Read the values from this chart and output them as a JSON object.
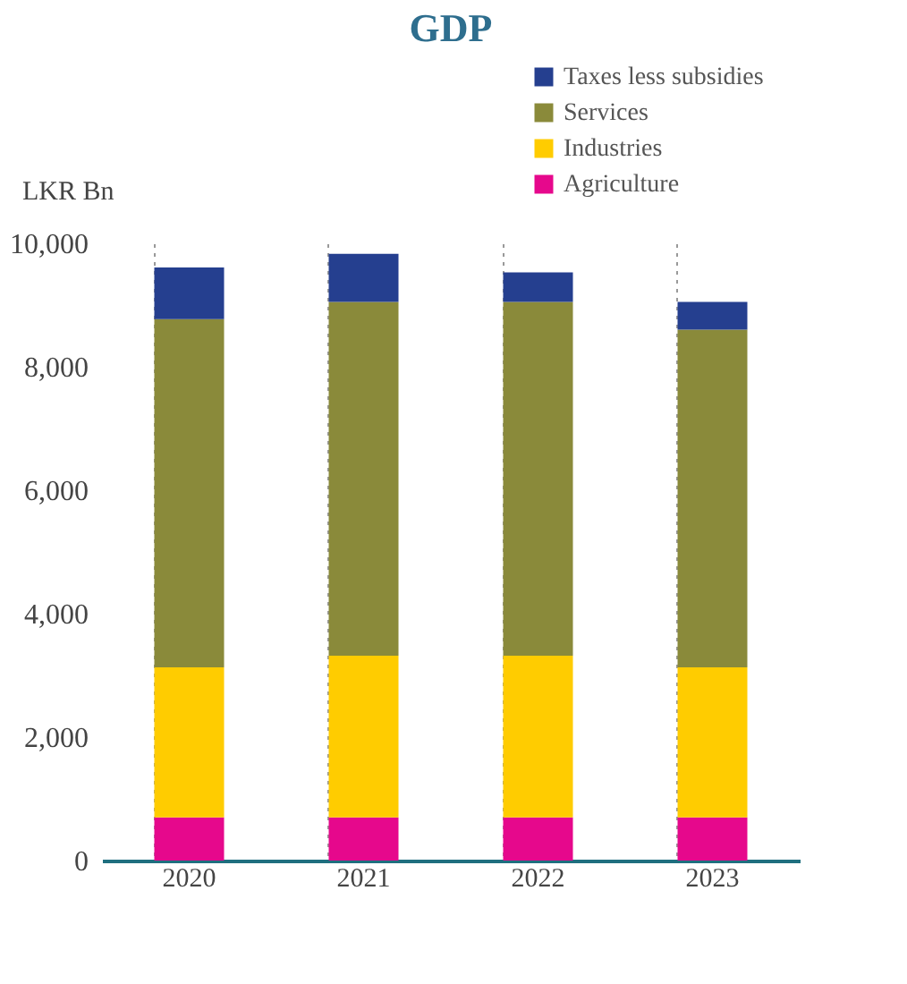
{
  "chart_data": {
    "type": "bar",
    "title": "GDP",
    "ylabel": "LKR Bn",
    "categories": [
      "2020",
      "2021",
      "2022",
      "2023"
    ],
    "stacked": true,
    "series": [
      {
        "name": "Agriculture",
        "color": "#e6088c",
        "values": [
          700,
          700,
          700,
          700
        ]
      },
      {
        "name": "Industries",
        "color": "#ffcc00",
        "values": [
          2430,
          2620,
          2620,
          2430
        ]
      },
      {
        "name": "Services",
        "color": "#8a8a3a",
        "values": [
          5640,
          5730,
          5730,
          5470
        ]
      },
      {
        "name": "Taxes less subsidies",
        "color": "#253f8f",
        "values": [
          840,
          780,
          480,
          450
        ]
      }
    ],
    "ylim": [
      0,
      10000
    ],
    "yticks": [
      0,
      {
        "value": 2000,
        "label": "2,000"
      },
      {
        "value": 4000,
        "label": "4,000"
      },
      {
        "value": 6000,
        "label": "6,000"
      },
      {
        "value": 8000,
        "label": "8,000"
      },
      {
        "value": 10000,
        "label": "10,000"
      }
    ],
    "grid": "x",
    "legend": "top right"
  }
}
